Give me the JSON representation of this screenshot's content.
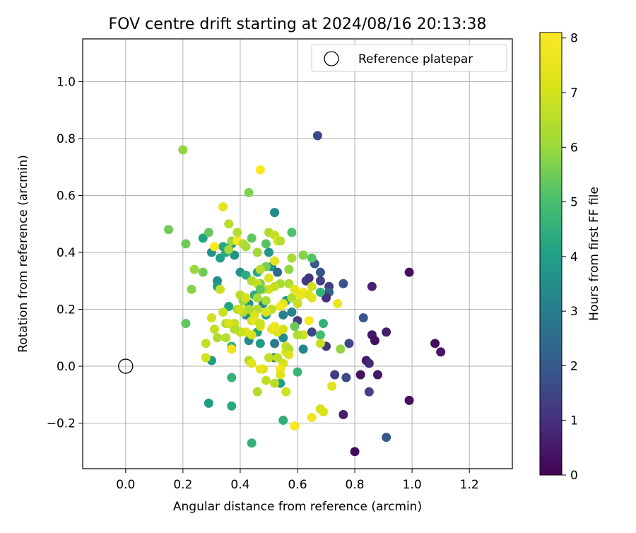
{
  "chart_data": {
    "type": "scatter",
    "title": "FOV centre drift starting at 2024/08/16 20:13:38",
    "xlabel": "Angular distance from reference (arcmin)",
    "ylabel": "Rotation from reference (arcmin)",
    "xlim": [
      -0.15,
      1.35
    ],
    "ylim": [
      -0.36,
      1.15
    ],
    "xticks": [
      0.0,
      0.2,
      0.4,
      0.6,
      0.8,
      1.0,
      1.2
    ],
    "xtick_labels": [
      "0.0",
      "0.2",
      "0.4",
      "0.6",
      "0.8",
      "1.0",
      "1.2"
    ],
    "yticks": [
      -0.2,
      0.0,
      0.2,
      0.4,
      0.6,
      0.8,
      1.0
    ],
    "ytick_labels": [
      "−0.2",
      "0.0",
      "0.2",
      "0.4",
      "0.6",
      "0.8",
      "1.0"
    ],
    "grid": true,
    "colormap": "viridis",
    "colorbar": {
      "label": "Hours from first FF file",
      "range": [
        0,
        8.1
      ],
      "ticks": [
        0,
        1,
        2,
        3,
        4,
        5,
        6,
        7,
        8
      ],
      "tick_labels": [
        "0",
        "1",
        "2",
        "3",
        "4",
        "5",
        "6",
        "7",
        "8"
      ]
    },
    "legend": {
      "position": "top-right",
      "entries": [
        "Reference platepar"
      ]
    },
    "reference": {
      "x": 0.0,
      "y": 0.0,
      "label": "Reference platepar"
    },
    "points": [
      [
        0.67,
        0.81,
        1.6
      ],
      [
        0.8,
        -0.3,
        0.2
      ],
      [
        0.91,
        -0.25,
        1.9
      ],
      [
        0.99,
        0.33,
        0.3
      ],
      [
        0.99,
        -0.12,
        0.3
      ],
      [
        1.08,
        0.08,
        0.2
      ],
      [
        1.1,
        0.05,
        0.4
      ],
      [
        0.86,
        0.28,
        0.7
      ],
      [
        0.83,
        0.17,
        1.9
      ],
      [
        0.86,
        0.11,
        0.5
      ],
      [
        0.87,
        0.09,
        0.3
      ],
      [
        0.91,
        0.12,
        0.6
      ],
      [
        0.84,
        0.02,
        0.5
      ],
      [
        0.85,
        0.01,
        0.8
      ],
      [
        0.88,
        -0.03,
        0.5
      ],
      [
        0.82,
        -0.03,
        0.4
      ],
      [
        0.85,
        -0.09,
        1.4
      ],
      [
        0.77,
        -0.04,
        1.6
      ],
      [
        0.73,
        -0.03,
        1.2
      ],
      [
        0.76,
        -0.17,
        0.6
      ],
      [
        0.78,
        0.08,
        1.5
      ],
      [
        0.76,
        0.29,
        1.8
      ],
      [
        0.71,
        0.28,
        1.4
      ],
      [
        0.71,
        0.26,
        2.1
      ],
      [
        0.7,
        0.24,
        1.0
      ],
      [
        0.68,
        0.33,
        1.8
      ],
      [
        0.68,
        0.3,
        1.4
      ],
      [
        0.66,
        0.36,
        1.9
      ],
      [
        0.64,
        0.31,
        1.0
      ],
      [
        0.63,
        0.3,
        1.2
      ],
      [
        0.61,
        0.25,
        1.5
      ],
      [
        0.6,
        0.16,
        1.3
      ],
      [
        0.62,
        0.06,
        3.2
      ],
      [
        0.65,
        0.12,
        1.5
      ],
      [
        0.7,
        0.07,
        1.1
      ],
      [
        0.69,
        0.15,
        4.6
      ],
      [
        0.68,
        0.11,
        4.9
      ],
      [
        0.68,
        0.26,
        4.6
      ],
      [
        0.65,
        0.38,
        5.2
      ],
      [
        0.62,
        0.39,
        5.4
      ],
      [
        0.58,
        0.47,
        5.1
      ],
      [
        0.52,
        0.54,
        3.3
      ],
      [
        0.43,
        0.61,
        5.7
      ],
      [
        0.2,
        0.76,
        5.9
      ],
      [
        0.15,
        0.48,
        5.5
      ],
      [
        0.21,
        0.43,
        5.5
      ],
      [
        0.21,
        0.15,
        5.3
      ],
      [
        0.24,
        0.34,
        6.0
      ],
      [
        0.23,
        0.27,
        5.8
      ],
      [
        0.27,
        0.45,
        4.1
      ],
      [
        0.27,
        0.33,
        5.5
      ],
      [
        0.29,
        0.47,
        5.4
      ],
      [
        0.3,
        0.4,
        3.5
      ],
      [
        0.32,
        0.3,
        3.4
      ],
      [
        0.32,
        0.28,
        3.8
      ],
      [
        0.33,
        0.38,
        4.0
      ],
      [
        0.34,
        0.42,
        4.2
      ],
      [
        0.35,
        0.4,
        4.3
      ],
      [
        0.37,
        0.43,
        3.2
      ],
      [
        0.38,
        0.39,
        3.6
      ],
      [
        0.36,
        0.21,
        4.2
      ],
      [
        0.37,
        0.07,
        4.6
      ],
      [
        0.37,
        -0.04,
        4.6
      ],
      [
        0.37,
        -0.14,
        4.3
      ],
      [
        0.29,
        -0.13,
        4.0
      ],
      [
        0.3,
        0.02,
        3.8
      ],
      [
        0.44,
        -0.27,
        4.6
      ],
      [
        0.54,
        -0.06,
        3.9
      ],
      [
        0.55,
        -0.19,
        4.5
      ],
      [
        0.6,
        -0.02,
        4.7
      ],
      [
        0.5,
        0.4,
        3.7
      ],
      [
        0.51,
        0.35,
        3.6
      ],
      [
        0.53,
        0.33,
        2.4
      ],
      [
        0.56,
        0.23,
        3.9
      ],
      [
        0.55,
        0.18,
        3.1
      ],
      [
        0.52,
        0.08,
        2.9
      ],
      [
        0.55,
        0.1,
        3.4
      ],
      [
        0.58,
        0.19,
        3.2
      ],
      [
        0.48,
        0.22,
        3.3
      ],
      [
        0.49,
        0.18,
        4.1
      ],
      [
        0.43,
        0.22,
        3.7
      ],
      [
        0.42,
        0.18,
        3.5
      ],
      [
        0.46,
        0.12,
        4.1
      ],
      [
        0.47,
        0.08,
        3.9
      ],
      [
        0.43,
        0.09,
        3.4
      ],
      [
        0.4,
        0.33,
        3.7
      ],
      [
        0.42,
        0.32,
        4.4
      ],
      [
        0.44,
        0.3,
        4.2
      ],
      [
        0.46,
        0.33,
        4.3
      ],
      [
        0.45,
        0.25,
        4.4
      ],
      [
        0.52,
        0.03,
        2.6
      ],
      [
        0.44,
        0.45,
        5.3
      ],
      [
        0.46,
        0.4,
        6.1
      ],
      [
        0.49,
        0.35,
        5.6
      ],
      [
        0.5,
        0.47,
        6.4
      ],
      [
        0.52,
        0.46,
        6.7
      ],
      [
        0.53,
        0.44,
        7.4
      ],
      [
        0.58,
        0.38,
        6.2
      ],
      [
        0.57,
        0.29,
        6.4
      ],
      [
        0.58,
        0.24,
        6.4
      ],
      [
        0.6,
        0.22,
        6.8
      ],
      [
        0.57,
        0.34,
        5.9
      ],
      [
        0.54,
        0.29,
        6.2
      ],
      [
        0.52,
        0.28,
        6.7
      ],
      [
        0.5,
        0.27,
        7.0
      ],
      [
        0.47,
        0.29,
        5.6
      ],
      [
        0.46,
        0.24,
        6.2
      ],
      [
        0.49,
        0.23,
        6.2
      ],
      [
        0.48,
        0.27,
        6.4
      ],
      [
        0.46,
        0.2,
        6.5
      ],
      [
        0.45,
        0.18,
        7.1
      ],
      [
        0.44,
        0.16,
        6.8
      ],
      [
        0.43,
        0.2,
        6.3
      ],
      [
        0.41,
        0.19,
        6.5
      ],
      [
        0.4,
        0.25,
        6.6
      ],
      [
        0.41,
        0.23,
        6.0
      ],
      [
        0.39,
        0.2,
        6.2
      ],
      [
        0.38,
        0.15,
        6.5
      ],
      [
        0.35,
        0.15,
        6.3
      ],
      [
        0.34,
        0.19,
        6.8
      ],
      [
        0.31,
        0.13,
        6.7
      ],
      [
        0.3,
        0.17,
        7.0
      ],
      [
        0.28,
        0.08,
        6.7
      ],
      [
        0.28,
        0.03,
        7.0
      ],
      [
        0.32,
        0.1,
        6.3
      ],
      [
        0.37,
        0.06,
        7.7
      ],
      [
        0.36,
        0.41,
        6.1
      ],
      [
        0.36,
        0.5,
        6.5
      ],
      [
        0.37,
        0.44,
        6.1
      ],
      [
        0.39,
        0.47,
        6.5
      ],
      [
        0.39,
        0.44,
        7.9
      ],
      [
        0.41,
        0.43,
        6.4
      ],
      [
        0.42,
        0.42,
        6.2
      ],
      [
        0.44,
        0.3,
        6.5
      ],
      [
        0.46,
        0.29,
        6.7
      ],
      [
        0.47,
        0.34,
        6.5
      ],
      [
        0.5,
        0.31,
        7.3
      ],
      [
        0.52,
        0.37,
        7.5
      ],
      [
        0.55,
        0.22,
        7.4
      ],
      [
        0.54,
        0.21,
        7.0
      ],
      [
        0.51,
        0.2,
        6.6
      ],
      [
        0.49,
        0.19,
        7.2
      ],
      [
        0.47,
        0.14,
        7.1
      ],
      [
        0.44,
        0.11,
        7.1
      ],
      [
        0.42,
        0.12,
        7.3
      ],
      [
        0.4,
        0.12,
        6.8
      ],
      [
        0.38,
        0.14,
        7.0
      ],
      [
        0.38,
        0.13,
        6.4
      ],
      [
        0.4,
        0.2,
        7.0
      ],
      [
        0.42,
        0.24,
        7.1
      ],
      [
        0.45,
        0.16,
        7.5
      ],
      [
        0.47,
        0.15,
        6.9
      ],
      [
        0.51,
        0.13,
        7.5
      ],
      [
        0.53,
        0.12,
        7.3
      ],
      [
        0.52,
        0.14,
        7.7
      ],
      [
        0.55,
        0.13,
        7.1
      ],
      [
        0.56,
        0.07,
        6.8
      ],
      [
        0.56,
        0.05,
        7.0
      ],
      [
        0.57,
        0.06,
        6.4
      ],
      [
        0.57,
        0.04,
        7.3
      ],
      [
        0.55,
        0.01,
        7.1
      ],
      [
        0.53,
        0.03,
        6.6
      ],
      [
        0.5,
        0.03,
        6.7
      ],
      [
        0.48,
        -0.01,
        7.2
      ],
      [
        0.47,
        -0.01,
        7.6
      ],
      [
        0.49,
        -0.05,
        6.7
      ],
      [
        0.52,
        -0.06,
        6.5
      ],
      [
        0.54,
        -0.01,
        7.9
      ],
      [
        0.54,
        -0.03,
        7.2
      ],
      [
        0.56,
        -0.09,
        6.9
      ],
      [
        0.46,
        -0.09,
        6.4
      ],
      [
        0.43,
        0.02,
        6.3
      ],
      [
        0.44,
        0.01,
        7.4
      ],
      [
        0.36,
        0.15,
        7.1
      ],
      [
        0.35,
        0.1,
        6.5
      ],
      [
        0.33,
        0.27,
        6.8
      ],
      [
        0.34,
        0.56,
        7.4
      ],
      [
        0.31,
        0.42,
        8.0
      ],
      [
        0.47,
        0.69,
        8.0
      ],
      [
        0.54,
        0.21,
        7.8
      ],
      [
        0.59,
        0.27,
        7.5
      ],
      [
        0.62,
        0.26,
        7.9
      ],
      [
        0.61,
        0.25,
        7.6
      ],
      [
        0.64,
        0.25,
        7.2
      ],
      [
        0.65,
        0.24,
        7.4
      ],
      [
        0.65,
        0.28,
        6.9
      ],
      [
        0.64,
        0.16,
        8.0
      ],
      [
        0.62,
        0.11,
        7.0
      ],
      [
        0.6,
        0.11,
        6.4
      ],
      [
        0.68,
        0.08,
        6.8
      ],
      [
        0.74,
        0.22,
        7.7
      ],
      [
        0.72,
        -0.07,
        7.4
      ],
      [
        0.68,
        -0.15,
        7.1
      ],
      [
        0.69,
        -0.16,
        7.2
      ],
      [
        0.65,
        -0.18,
        7.7
      ],
      [
        0.59,
        -0.21,
        8.0
      ],
      [
        0.75,
        0.06,
        5.9
      ],
      [
        0.62,
        0.39,
        5.8
      ],
      [
        0.59,
        0.14,
        5.4
      ],
      [
        0.47,
        0.27,
        5.3
      ],
      [
        0.49,
        0.43,
        5.2
      ],
      [
        0.54,
        0.44,
        6.5
      ]
    ]
  }
}
